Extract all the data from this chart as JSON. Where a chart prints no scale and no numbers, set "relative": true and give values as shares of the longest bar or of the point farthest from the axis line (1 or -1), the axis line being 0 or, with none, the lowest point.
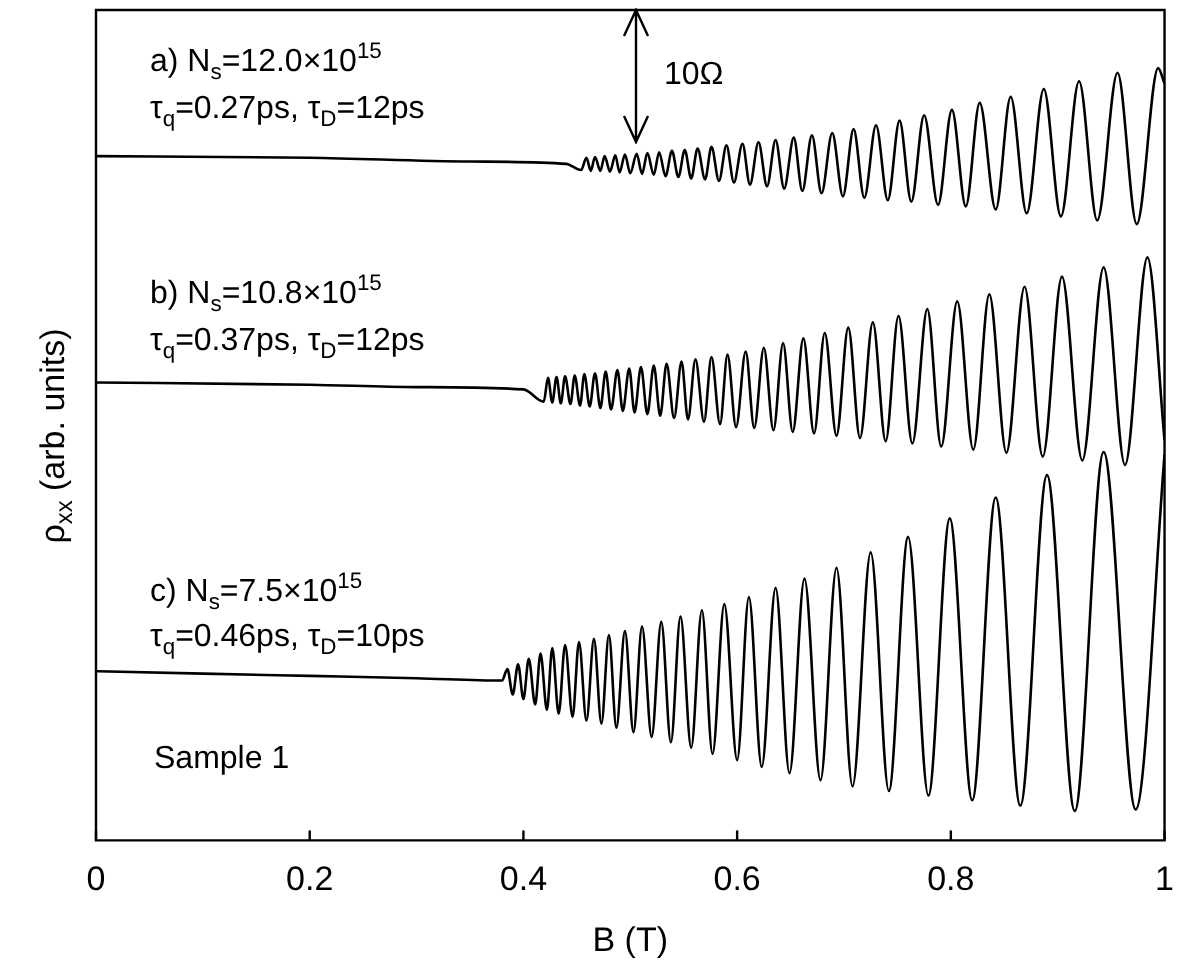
{
  "chart_data": {
    "type": "line",
    "relative": true,
    "xlabel": "B (T)",
    "ylabel": "ρ$_{xx}$ (arb. units)",
    "xlim": [
      0,
      1
    ],
    "xticks": [
      0,
      0.2,
      0.4,
      0.6,
      0.8,
      1
    ],
    "marker": "none",
    "annotations": [
      "a) N$_{s}$=12.0×10$^{15}$",
      "τ$_{q}$=0.27ps, τ$_{D}$=12ps",
      "b) N$_{s}$=10.8×10$^{15}$",
      "τ$_{q}$=0.37ps, τ$_{D}$=12ps",
      "c) N$_{s}$=7.5×10$^{15}$",
      "τ$_{q}$=0.46ps, τ$_{D}$=10ps",
      "Sample 1",
      "10Ω"
    ],
    "series": [
      {
        "color": "#000000",
        "x": [
          0,
          0.2,
          0.35,
          0.44,
          0.454,
          0.459,
          0.463,
          0.467,
          0.472,
          0.476,
          0.481,
          0.486,
          0.49,
          0.495,
          0.5,
          0.506,
          0.511,
          0.516,
          0.522,
          0.527,
          0.533,
          0.539,
          0.545,
          0.551,
          0.557,
          0.563,
          0.57,
          0.576,
          0.583,
          0.59,
          0.597,
          0.605,
          0.612,
          0.62,
          0.628,
          0.636,
          0.644,
          0.653,
          0.661,
          0.67,
          0.679,
          0.689,
          0.699,
          0.709,
          0.719,
          0.73,
          0.741,
          0.752,
          0.763,
          0.775,
          0.788,
          0.801,
          0.814,
          0.827,
          0.842,
          0.856,
          0.871,
          0.887,
          0.903,
          0.92,
          0.937,
          0.956,
          0.974,
          0.994,
          1
        ],
        "values": [
          0.886,
          0.884,
          0.879,
          0.876,
          0.868,
          0.884,
          0.867,
          0.885,
          0.867,
          0.886,
          0.866,
          0.887,
          0.865,
          0.888,
          0.864,
          0.889,
          0.863,
          0.89,
          0.862,
          0.891,
          0.86,
          0.893,
          0.859,
          0.894,
          0.857,
          0.896,
          0.856,
          0.898,
          0.854,
          0.9,
          0.852,
          0.902,
          0.849,
          0.904,
          0.847,
          0.907,
          0.844,
          0.91,
          0.841,
          0.913,
          0.838,
          0.916,
          0.834,
          0.921,
          0.832,
          0.926,
          0.829,
          0.932,
          0.827,
          0.939,
          0.823,
          0.946,
          0.821,
          0.955,
          0.817,
          0.963,
          0.812,
          0.973,
          0.808,
          0.983,
          0.803,
          0.994,
          0.798,
          1,
          0.98
        ]
      },
      {
        "color": "#000000",
        "x": [
          0,
          0.2,
          0.3,
          0.4,
          0.419,
          0.423,
          0.427,
          0.431,
          0.435,
          0.439,
          0.444,
          0.448,
          0.453,
          0.457,
          0.462,
          0.467,
          0.472,
          0.477,
          0.482,
          0.488,
          0.493,
          0.499,
          0.504,
          0.51,
          0.516,
          0.522,
          0.528,
          0.534,
          0.541,
          0.548,
          0.554,
          0.561,
          0.569,
          0.576,
          0.584,
          0.591,
          0.599,
          0.608,
          0.616,
          0.625,
          0.634,
          0.643,
          0.652,
          0.662,
          0.672,
          0.682,
          0.693,
          0.704,
          0.715,
          0.727,
          0.739,
          0.751,
          0.764,
          0.778,
          0.791,
          0.806,
          0.821,
          0.836,
          0.852,
          0.869,
          0.886,
          0.904,
          0.923,
          0.943,
          0.963,
          0.984,
          1
        ],
        "values": [
          0.593,
          0.59,
          0.587,
          0.584,
          0.568,
          0.599,
          0.567,
          0.6,
          0.566,
          0.601,
          0.565,
          0.602,
          0.563,
          0.604,
          0.562,
          0.605,
          0.56,
          0.607,
          0.558,
          0.609,
          0.556,
          0.611,
          0.554,
          0.613,
          0.552,
          0.615,
          0.55,
          0.617,
          0.547,
          0.62,
          0.545,
          0.623,
          0.542,
          0.626,
          0.539,
          0.629,
          0.535,
          0.633,
          0.534,
          0.638,
          0.531,
          0.644,
          0.529,
          0.65,
          0.527,
          0.657,
          0.524,
          0.664,
          0.521,
          0.671,
          0.517,
          0.679,
          0.514,
          0.688,
          0.51,
          0.698,
          0.506,
          0.707,
          0.502,
          0.717,
          0.497,
          0.73,
          0.492,
          0.742,
          0.486,
          0.755,
          0.518
        ]
      },
      {
        "color": "#000000",
        "x": [
          0,
          0.1,
          0.2,
          0.3,
          0.38,
          0.385,
          0.39,
          0.395,
          0.4,
          0.405,
          0.411,
          0.416,
          0.422,
          0.427,
          0.433,
          0.439,
          0.446,
          0.452,
          0.459,
          0.466,
          0.473,
          0.48,
          0.487,
          0.495,
          0.503,
          0.511,
          0.52,
          0.529,
          0.538,
          0.547,
          0.557,
          0.567,
          0.577,
          0.588,
          0.6,
          0.611,
          0.623,
          0.636,
          0.649,
          0.663,
          0.678,
          0.693,
          0.708,
          0.725,
          0.742,
          0.76,
          0.779,
          0.799,
          0.82,
          0.842,
          0.865,
          0.89,
          0.916,
          0.943,
          0.973,
          1
        ],
        "values": [
          0.219,
          0.216,
          0.213,
          0.21,
          0.207,
          0.222,
          0.189,
          0.228,
          0.183,
          0.235,
          0.176,
          0.242,
          0.169,
          0.249,
          0.164,
          0.253,
          0.16,
          0.257,
          0.155,
          0.261,
          0.151,
          0.266,
          0.146,
          0.271,
          0.14,
          0.277,
          0.134,
          0.283,
          0.127,
          0.29,
          0.12,
          0.298,
          0.112,
          0.306,
          0.104,
          0.315,
          0.095,
          0.327,
          0.087,
          0.339,
          0.078,
          0.353,
          0.07,
          0.373,
          0.064,
          0.393,
          0.058,
          0.417,
          0.052,
          0.444,
          0.045,
          0.473,
          0.038,
          0.503,
          0.04,
          0.5
        ]
      }
    ]
  }
}
